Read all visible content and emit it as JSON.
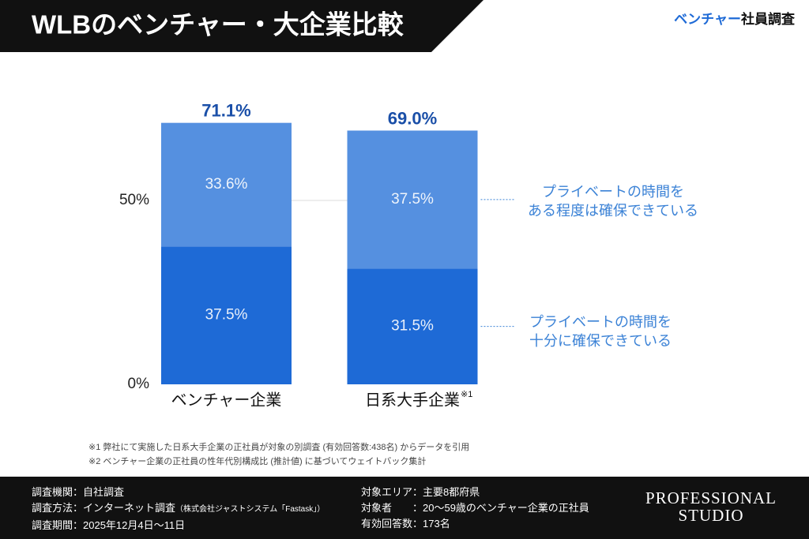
{
  "header": {
    "title": "WLBのベンチャー・大企業比較",
    "brand_accent": "ベンチャー",
    "brand_rest": "社員調査"
  },
  "chart_data": {
    "type": "stacked-bar",
    "categories": [
      "ベンチャー企業",
      "日系大手企業"
    ],
    "category_notes": [
      null,
      "※1"
    ],
    "series": [
      {
        "name": "プライベートの時間を\n十分に確保できている",
        "color": "#1e6ad6",
        "values": [
          37.5,
          31.5
        ],
        "value_labels": [
          "37.5%",
          "31.5%"
        ]
      },
      {
        "name": "プライベートの時間を\nある程度は確保できている",
        "color": "#5590e0",
        "values": [
          33.6,
          37.5
        ],
        "value_labels": [
          "33.6%",
          "37.5%"
        ]
      }
    ],
    "totals": [
      71.1,
      69.0
    ],
    "total_labels": [
      "71.1%",
      "69.0%"
    ],
    "ylim": [
      0,
      75
    ],
    "yticks": [
      {
        "value": 0,
        "label": "0%"
      },
      {
        "value": 50,
        "label": "50%"
      }
    ],
    "grid": true
  },
  "footnotes": [
    "※1 弊社にて実施した日系大手企業の正社員が対象の別調査 (有効回答数:438名) からデータを引用",
    "※2 ベンチャー企業の正社員の性年代別構成比 (推計値) に基づいてウェイトバック集計"
  ],
  "footer": {
    "left": [
      {
        "text": "調査機関：自社調査"
      },
      {
        "text": "調査方法：インターネット調査",
        "note": "（株式会社ジャストシステム「Fastask」）"
      },
      {
        "text": "調査期間：2025年12月4日〜11日"
      }
    ],
    "right": [
      "対象エリア：主要8都府県",
      "対象者　　：20〜59歳のベンチャー企業の正社員",
      "有効回答数：173名"
    ],
    "logo": [
      "PROFESSIONAL",
      "STUDIO"
    ]
  }
}
